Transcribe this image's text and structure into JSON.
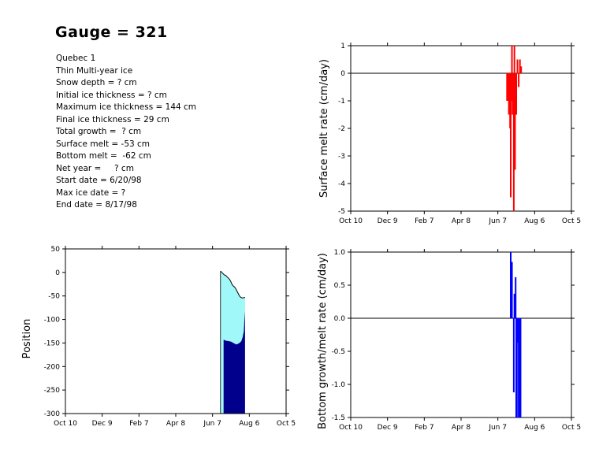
{
  "title": "Gauge = 321",
  "info_lines": [
    "Quebec 1",
    "Thin Multi-year ice",
    "Snow depth = ? cm",
    "Initial ice thickness = ? cm",
    "Maximum ice thickness = 144 cm",
    "Final ice thickness = 29 cm",
    "Total growth =  ? cm",
    "Surface melt = -53 cm",
    "Bottom melt =  -62 cm",
    "Net year =     ? cm",
    "Start date = 6/20/98",
    "Max ice date = ?",
    "End date = 8/17/98"
  ],
  "chart_data": [
    {
      "id": "position",
      "type": "area",
      "ylabel": "Position",
      "xlabel": "",
      "xticks": [
        "Oct 10",
        "Dec 9",
        "Feb 7",
        "Apr 8",
        "Jun 7",
        "Aug 6",
        "Oct 5"
      ],
      "xlim": [
        0,
        360
      ],
      "ylim": [
        -300,
        50
      ],
      "yticks": [
        50,
        0,
        -50,
        -100,
        -150,
        -200,
        -250,
        -300
      ],
      "fill_colors": {
        "ice_upper": "#a0f8f8",
        "ice_lower": "#00008c"
      },
      "surface": [
        [
          253,
          3
        ],
        [
          256,
          -1
        ],
        [
          259,
          -5
        ],
        [
          262,
          -7
        ],
        [
          265,
          -11
        ],
        [
          268,
          -15
        ],
        [
          270,
          -20
        ],
        [
          272,
          -26
        ],
        [
          274,
          -29
        ],
        [
          276,
          -31
        ],
        [
          278,
          -35
        ],
        [
          280,
          -40
        ],
        [
          282,
          -45
        ],
        [
          284,
          -50
        ],
        [
          286,
          -53
        ],
        [
          288,
          -54
        ],
        [
          290,
          -54
        ],
        [
          293,
          -53
        ]
      ],
      "bottom_boundary": [
        [
          258,
          -143
        ],
        [
          262,
          -145
        ],
        [
          266,
          -146
        ],
        [
          270,
          -147
        ],
        [
          274,
          -150
        ],
        [
          277,
          -152
        ],
        [
          279,
          -153
        ],
        [
          281,
          -152
        ],
        [
          284,
          -150
        ],
        [
          287,
          -146
        ],
        [
          289,
          -138
        ],
        [
          291,
          -125
        ],
        [
          292,
          -100
        ],
        [
          293,
          -82
        ]
      ],
      "bottom_start_day": 258,
      "start_day": 253,
      "end_day": 293
    },
    {
      "id": "surface-melt",
      "type": "bar",
      "ylabel": "Surface melt rate (cm/day)",
      "xlabel": "",
      "xticks": [
        "Oct 10",
        "Dec 9",
        "Feb 7",
        "Apr 8",
        "Jun 7",
        "Aug 6",
        "Oct 5"
      ],
      "xlim": [
        0,
        360
      ],
      "ylim": [
        -5,
        1
      ],
      "yticks": [
        1,
        0,
        -1,
        -2,
        -3,
        -4,
        -5
      ],
      "color": "#ff0000",
      "days": [
        255,
        256,
        258,
        259,
        260,
        261,
        262,
        263,
        264,
        265,
        266,
        267,
        268,
        269,
        270,
        272,
        274,
        276,
        278
      ],
      "values": [
        -1.0,
        -1.0,
        -1.5,
        -1.0,
        -2.0,
        -4.5,
        -1.0,
        1.0,
        -1.5,
        -1.0,
        -5.0,
        1.0,
        -3.5,
        -1.5,
        -1.5,
        0.5,
        -0.5,
        0.5,
        0.25
      ]
    },
    {
      "id": "bottom-rate",
      "type": "bar",
      "ylabel": "Bottom growth/melt rate (cm/day)",
      "xlabel": "",
      "xticks": [
        "Oct 10",
        "Dec 9",
        "Feb 7",
        "Apr 8",
        "Jun 7",
        "Aug 6",
        "Oct 5"
      ],
      "xlim": [
        0,
        360
      ],
      "ylim": [
        -1.5,
        1
      ],
      "yticks": [
        "1.0",
        "0.5",
        "0.0",
        "-0.5",
        "-1.0",
        "-1.5"
      ],
      "color": "#0000ff",
      "days": [
        261,
        262,
        263,
        264,
        266,
        267,
        268,
        269,
        270,
        271,
        272,
        273,
        274,
        275,
        276,
        277
      ],
      "values": [
        1.0,
        0.85,
        0.85,
        0.0,
        -1.12,
        0.37,
        0.37,
        0.62,
        -1.5,
        -1.5,
        -0.37,
        -0.2,
        -1.5,
        -1.5,
        -1.5,
        -1.5
      ]
    }
  ]
}
